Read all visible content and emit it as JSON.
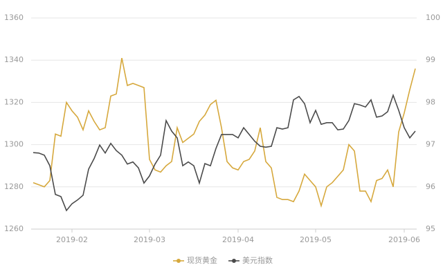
{
  "chart_data": {
    "type": "line",
    "categories": [
      null,
      null,
      null,
      null,
      null,
      null,
      null,
      "2019-02",
      null,
      null,
      null,
      null,
      null,
      null,
      null,
      null,
      null,
      null,
      null,
      null,
      null,
      "2019-03",
      null,
      null,
      null,
      null,
      null,
      null,
      null,
      null,
      null,
      null,
      null,
      null,
      null,
      null,
      null,
      "2019-04",
      null,
      null,
      null,
      null,
      null,
      null,
      null,
      null,
      null,
      null,
      null,
      null,
      null,
      "2019-05",
      null,
      null,
      null,
      null,
      null,
      null,
      null,
      null,
      null,
      null,
      null,
      null,
      null,
      null,
      null,
      "2019-06",
      null,
      null
    ],
    "series": [
      {
        "name": "现货黄金",
        "color": "#d6a83c",
        "values": [
          1282,
          1281,
          1280,
          1283,
          1305,
          1304,
          1320,
          1316,
          1313,
          1307,
          1316,
          1311,
          1307,
          1308,
          1323,
          1324,
          1341,
          1328,
          1329,
          1328,
          1327,
          1293,
          1288,
          1287,
          1290,
          1292,
          1308,
          1301,
          1303,
          1305,
          1311,
          1314,
          1319,
          1321,
          1308,
          1292,
          1289,
          1288,
          1292,
          1293,
          1297,
          1308,
          1292,
          1289,
          1275,
          1274,
          1274,
          1273,
          1278,
          1286,
          1283,
          1280,
          1271,
          1280,
          1282,
          1285,
          1288,
          1300,
          1297,
          1278,
          1278,
          1273,
          1283,
          1284,
          1288,
          1280,
          1306,
          1315,
          1326,
          1336
        ]
      },
      {
        "name": "美元指数",
        "color": "#4a4a4a",
        "axis": "y2",
        "values": [
          96.81,
          96.8,
          96.75,
          96.5,
          95.82,
          95.77,
          95.44,
          95.6,
          95.69,
          95.8,
          96.42,
          96.67,
          96.99,
          96.8,
          97.03,
          96.86,
          96.75,
          96.54,
          96.59,
          96.45,
          96.09,
          96.26,
          96.54,
          96.75,
          97.57,
          97.32,
          97.16,
          96.5,
          96.59,
          96.5,
          96.09,
          96.55,
          96.5,
          96.91,
          97.24,
          97.24,
          97.24,
          97.16,
          97.4,
          97.24,
          97.08,
          96.96,
          96.94,
          96.96,
          97.4,
          97.37,
          97.4,
          98.06,
          98.14,
          97.97,
          97.52,
          97.81,
          97.48,
          97.52,
          97.52,
          97.35,
          97.37,
          97.57,
          97.97,
          97.94,
          97.89,
          98.06,
          97.65,
          97.68,
          97.78,
          98.17,
          97.81,
          97.4,
          97.16,
          97.32
        ]
      }
    ],
    "ylim": [
      1260,
      1360
    ],
    "yticks": [
      1260,
      1280,
      1300,
      1320,
      1340,
      1360
    ],
    "y2lim": [
      95,
      100
    ],
    "y2ticks": [
      95,
      96,
      97,
      98,
      99,
      100
    ],
    "grid": true,
    "legend": "bottom"
  }
}
